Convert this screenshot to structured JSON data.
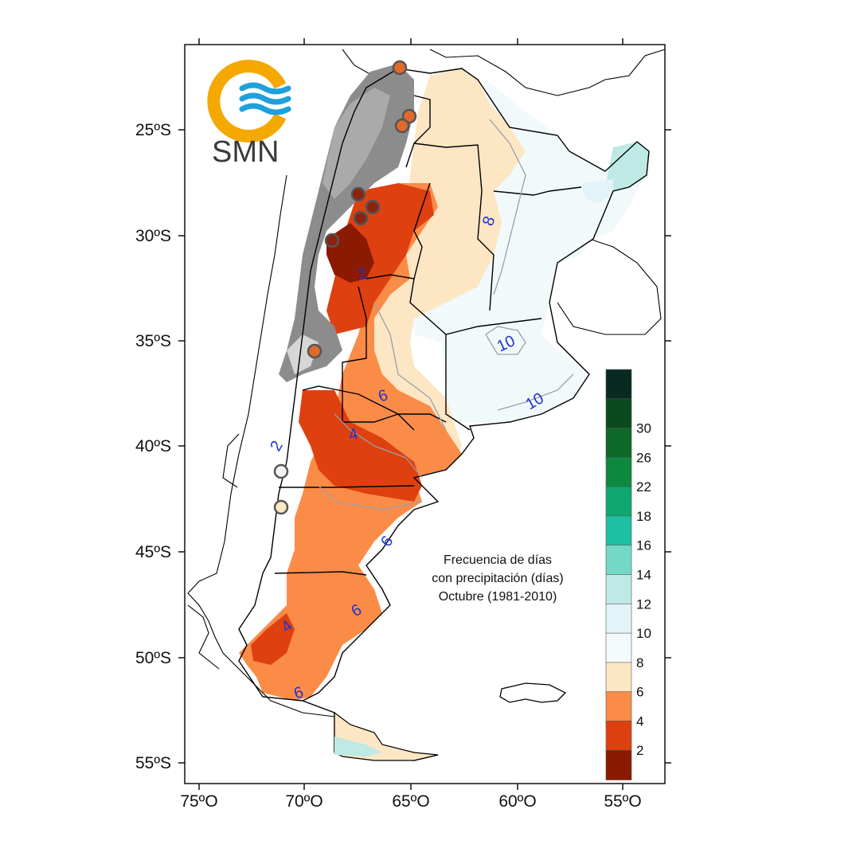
{
  "logo": {
    "text": "SMN",
    "ring_color": "#f5a800",
    "wave_color": "#1ea0dc"
  },
  "map_title": [
    "Frecuencia de días",
    "con precipitación (días)",
    "Octubre (1981-2010)"
  ],
  "axes": {
    "lat_ticks": [
      "25ºS",
      "30ºS",
      "35ºS",
      "40ºS",
      "45ºS",
      "50ºS",
      "55ºS"
    ],
    "lon_ticks": [
      "75ºO",
      "70ºO",
      "65ºO",
      "60ºO",
      "55ºO"
    ]
  },
  "legend": {
    "labels": [
      "2",
      "4",
      "6",
      "8",
      "10",
      "12",
      "14",
      "16",
      "18",
      "22",
      "26",
      "30"
    ],
    "colors": [
      "#8b1a00",
      "#df4010",
      "#fb8c48",
      "#fde6c4",
      "#f4fafc",
      "#e2f4f8",
      "#bfe9e4",
      "#74d8c6",
      "#1ec0a4",
      "#10a870",
      "#0e8a3e",
      "#0c6a2a",
      "#0a4a1e",
      "#082a22"
    ]
  },
  "contour_labels": [
    "8",
    "10",
    "10",
    "6",
    "4",
    "6",
    "6",
    "4",
    "6",
    "2",
    "2"
  ],
  "stations": {
    "highlight_color": "#e06a2a",
    "dark_color": "#8a2410"
  }
}
